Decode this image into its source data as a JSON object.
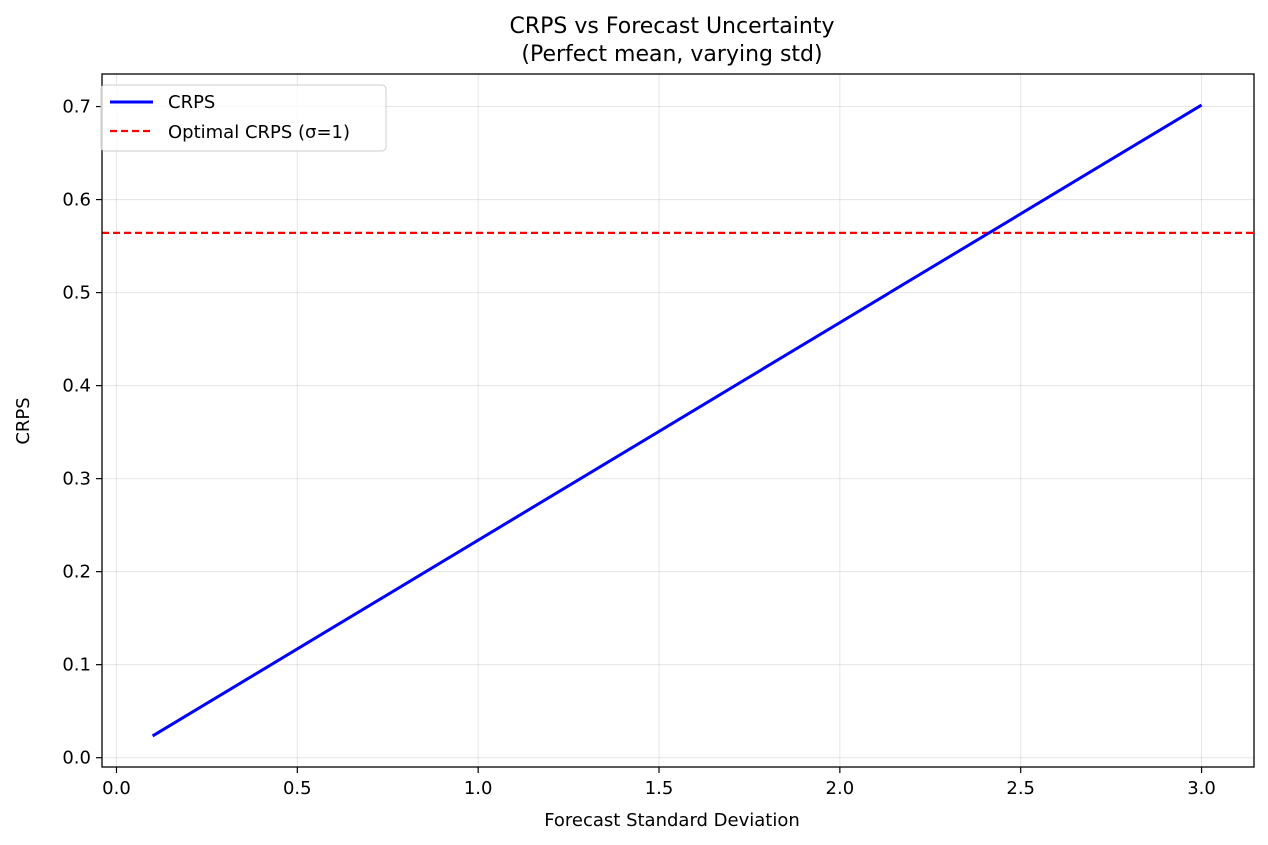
{
  "chart_data": {
    "type": "line",
    "title": "CRPS vs Forecast Uncertainty",
    "subtitle": "(Perfect mean, varying std)",
    "xlabel": "Forecast Standard Deviation",
    "ylabel": "CRPS",
    "xlim": [
      -0.04,
      3.145
    ],
    "ylim": [
      -0.01,
      0.735
    ],
    "xticks": [
      0.0,
      0.5,
      1.0,
      1.5,
      2.0,
      2.5,
      3.0
    ],
    "xtick_labels": [
      "0.0",
      "0.5",
      "1.0",
      "1.5",
      "2.0",
      "2.5",
      "3.0"
    ],
    "yticks": [
      0.0,
      0.1,
      0.2,
      0.3,
      0.4,
      0.5,
      0.6,
      0.7
    ],
    "ytick_labels": [
      "0.0",
      "0.1",
      "0.2",
      "0.3",
      "0.4",
      "0.5",
      "0.6",
      "0.7"
    ],
    "grid": true,
    "legend_position": "upper-left",
    "series": [
      {
        "name": "CRPS",
        "color": "#0000ff",
        "style": "solid",
        "x": [
          0.1,
          3.0
        ],
        "y": [
          0.0234,
          0.7016
        ]
      }
    ],
    "reference_lines": [
      {
        "name": "Optimal CRPS (σ=1)",
        "orientation": "horizontal",
        "y": 0.5642,
        "color": "#ff0000",
        "style": "dashed"
      }
    ]
  }
}
